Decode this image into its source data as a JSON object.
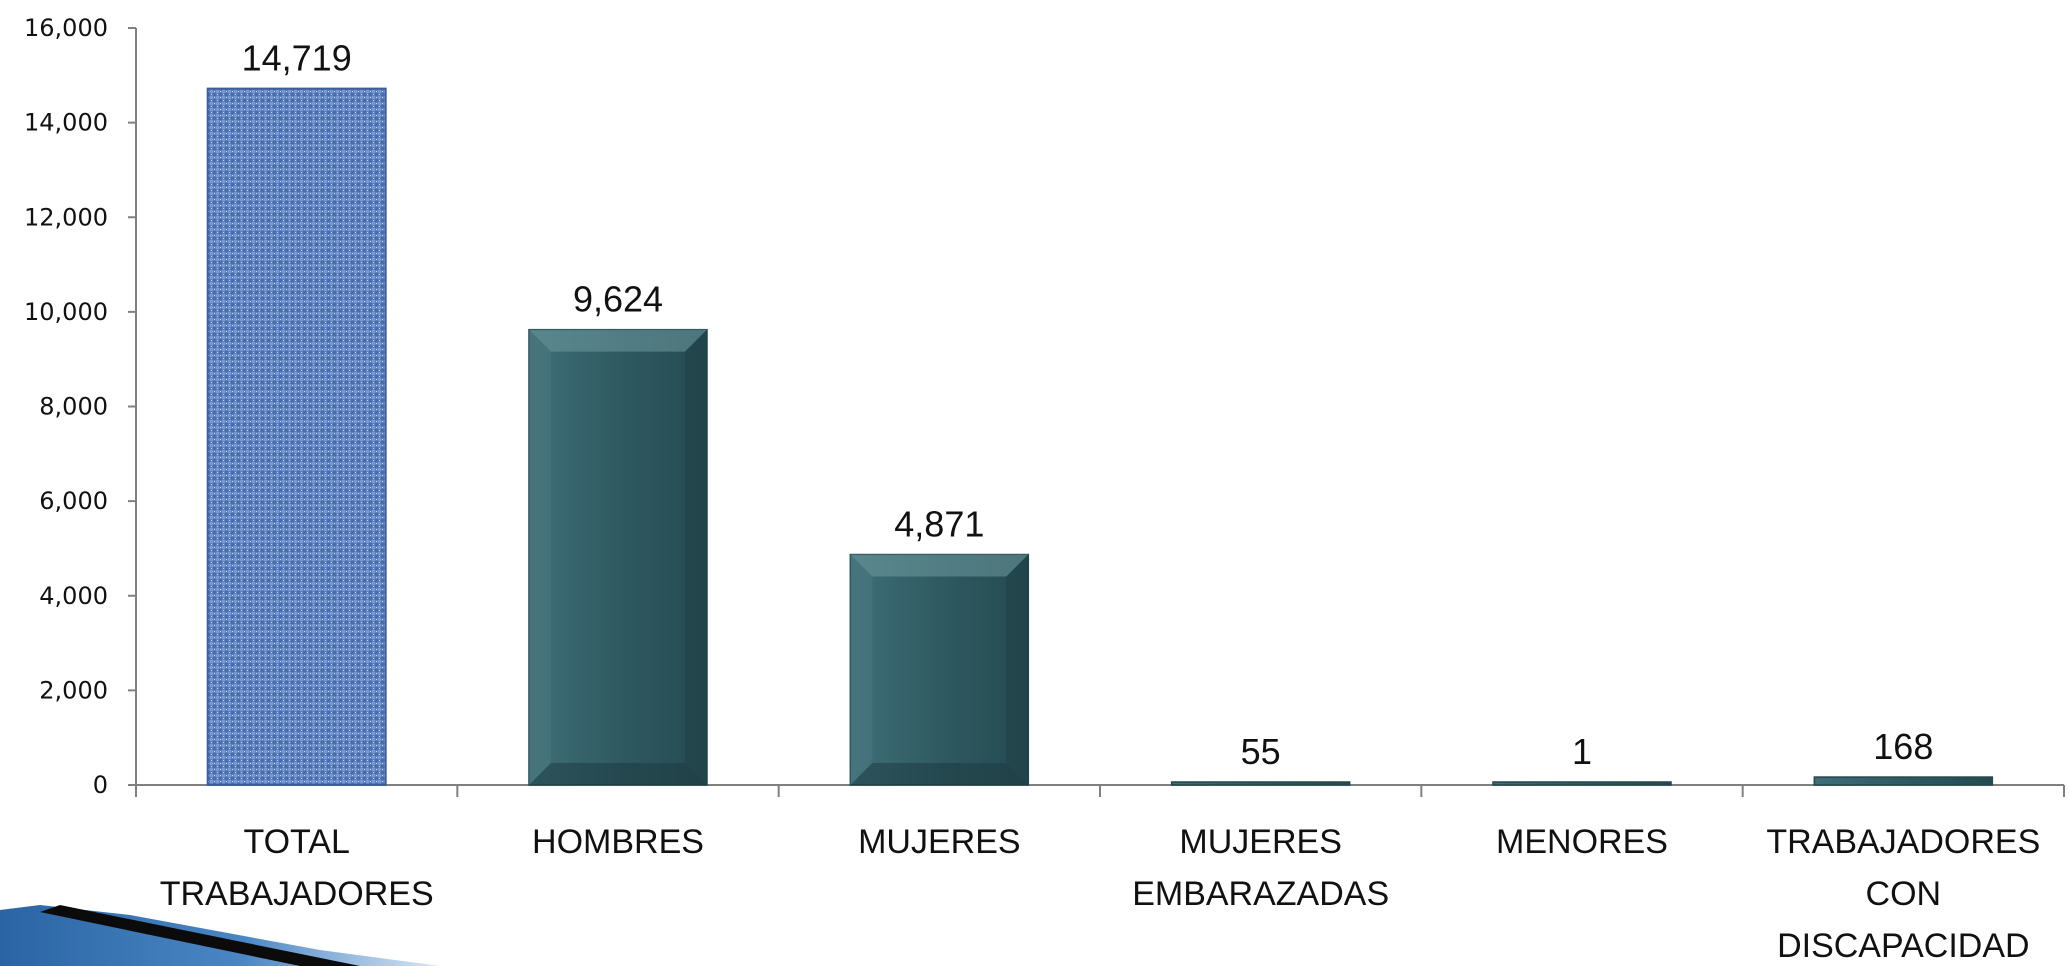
{
  "chart_data": {
    "type": "bar",
    "categories": [
      [
        "TOTAL",
        "TRABAJADORES"
      ],
      [
        "HOMBRES"
      ],
      [
        "MUJERES"
      ],
      [
        "MUJERES",
        "EMBARAZADAS"
      ],
      [
        "MENORES"
      ],
      [
        "TRABAJADORES",
        "CON",
        "DISCAPACIDAD"
      ]
    ],
    "values": [
      14719,
      9624,
      4871,
      55,
      1,
      168
    ],
    "data_labels": [
      "14,719",
      "9,624",
      "4,871",
      "55",
      "1",
      "168"
    ],
    "ylim": [
      0,
      16000
    ],
    "yticks": [
      0,
      2000,
      4000,
      6000,
      8000,
      10000,
      12000,
      14000,
      16000
    ],
    "ytick_labels": [
      "0",
      "2,000",
      "4,000",
      "6,000",
      "8,000",
      "10,000",
      "12,000",
      "14,000",
      "16,000"
    ],
    "grid": false,
    "colors": {
      "highlight_bar": "#5b7fbf",
      "bar": "#2f5a62",
      "axis": "#808080",
      "corner_swoosh": "#2f6fae"
    }
  }
}
